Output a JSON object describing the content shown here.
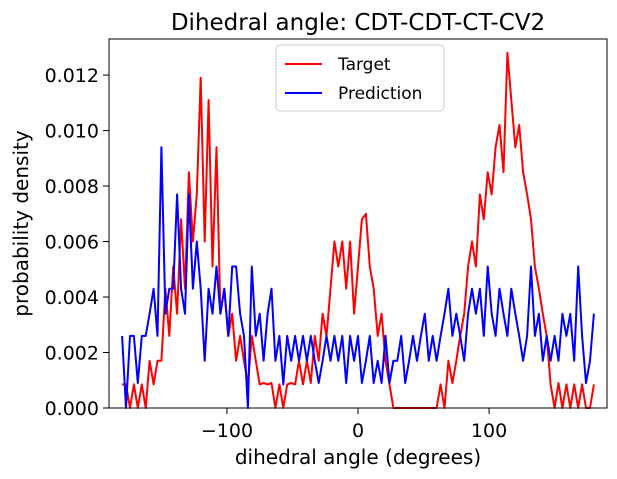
{
  "chart_data": {
    "type": "line",
    "title": "Dihedral angle: CDT-CDT-CT-CV2",
    "xlabel": "dihedral angle (degrees)",
    "ylabel": "probability density",
    "xlim": [
      -190,
      190
    ],
    "ylim": [
      0,
      0.0133
    ],
    "xticks": [
      -100,
      0,
      100
    ],
    "xtick_labels": [
      "−100",
      "0",
      "100"
    ],
    "yticks": [
      0,
      0.002,
      0.004,
      0.006,
      0.008,
      0.01,
      0.012
    ],
    "ytick_labels": [
      "0.000",
      "0.002",
      "0.004",
      "0.006",
      "0.008",
      "0.010",
      "0.012"
    ],
    "grid": false,
    "legend_position": "top-center",
    "series": [
      {
        "name": "Target",
        "color": "#ff0000",
        "points": [
          [
            -180,
            0.00085
          ],
          [
            -177,
            0.00085
          ],
          [
            -174,
            0
          ],
          [
            -171,
            0.00085
          ],
          [
            -168,
            0
          ],
          [
            -165,
            0.00085
          ],
          [
            -162,
            0
          ],
          [
            -159,
            0.0017
          ],
          [
            -156,
            0.00085
          ],
          [
            -153,
            0.0017
          ],
          [
            -150,
            0.0017
          ],
          [
            -147,
            0.0043
          ],
          [
            -144,
            0.0026
          ],
          [
            -141,
            0.0051
          ],
          [
            -138,
            0.0034
          ],
          [
            -135,
            0.0068
          ],
          [
            -132,
            0.0043
          ],
          [
            -129,
            0.0085
          ],
          [
            -126,
            0.006
          ],
          [
            -123,
            0.0077
          ],
          [
            -120,
            0.0119
          ],
          [
            -117,
            0.006
          ],
          [
            -114,
            0.0111
          ],
          [
            -111,
            0.0051
          ],
          [
            -108,
            0.0094
          ],
          [
            -105,
            0.0034
          ],
          [
            -102,
            0.0043
          ],
          [
            -99,
            0.0026
          ],
          [
            -96,
            0.0034
          ],
          [
            -93,
            0.0017
          ],
          [
            -90,
            0.0026
          ],
          [
            -87,
            0.0017
          ],
          [
            -84,
            0.00085
          ],
          [
            -81,
            0.0026
          ],
          [
            -78,
            0.0017
          ],
          [
            -75,
            0.00085
          ],
          [
            -72,
            0.0009
          ],
          [
            -69,
            0.00085
          ],
          [
            -66,
            0.0009
          ],
          [
            -63,
            0
          ],
          [
            -60,
            0.00085
          ],
          [
            -57,
            0
          ],
          [
            -54,
            0.00085
          ],
          [
            -51,
            0.0009
          ],
          [
            -48,
            0.00085
          ],
          [
            -45,
            0.0017
          ],
          [
            -42,
            0.00085
          ],
          [
            -39,
            0.0017
          ],
          [
            -36,
            0.0009
          ],
          [
            -33,
            0.0026
          ],
          [
            -30,
            0.0017
          ],
          [
            -27,
            0.0034
          ],
          [
            -24,
            0.0026
          ],
          [
            -21,
            0.0043
          ],
          [
            -18,
            0.006
          ],
          [
            -15,
            0.0051
          ],
          [
            -12,
            0.006
          ],
          [
            -9,
            0.0043
          ],
          [
            -6,
            0.006
          ],
          [
            -3,
            0.0034
          ],
          [
            0,
            0.0051
          ],
          [
            3,
            0.0068
          ],
          [
            6,
            0.007
          ],
          [
            9,
            0.0051
          ],
          [
            12,
            0.0043
          ],
          [
            15,
            0.0026
          ],
          [
            18,
            0.0034
          ],
          [
            21,
            0.0017
          ],
          [
            24,
            0.00085
          ],
          [
            27,
            0
          ],
          [
            30,
            0
          ],
          [
            33,
            0
          ],
          [
            36,
            0
          ],
          [
            39,
            0
          ],
          [
            42,
            0
          ],
          [
            45,
            0
          ],
          [
            48,
            0
          ],
          [
            51,
            0
          ],
          [
            54,
            0
          ],
          [
            57,
            0
          ],
          [
            60,
            0
          ],
          [
            63,
            0.00085
          ],
          [
            66,
            0
          ],
          [
            69,
            0.0017
          ],
          [
            72,
            0.0009
          ],
          [
            75,
            0.0017
          ],
          [
            78,
            0.0026
          ],
          [
            81,
            0.0034
          ],
          [
            84,
            0.0051
          ],
          [
            87,
            0.006
          ],
          [
            90,
            0.0051
          ],
          [
            93,
            0.0077
          ],
          [
            96,
            0.0068
          ],
          [
            99,
            0.0085
          ],
          [
            102,
            0.0077
          ],
          [
            105,
            0.0094
          ],
          [
            108,
            0.0102
          ],
          [
            111,
            0.0085
          ],
          [
            114,
            0.0128
          ],
          [
            117,
            0.0111
          ],
          [
            120,
            0.0094
          ],
          [
            123,
            0.0102
          ],
          [
            126,
            0.0085
          ],
          [
            129,
            0.0077
          ],
          [
            132,
            0.0068
          ],
          [
            135,
            0.0051
          ],
          [
            138,
            0.0043
          ],
          [
            141,
            0.0034
          ],
          [
            144,
            0.0026
          ],
          [
            147,
            0.00085
          ],
          [
            150,
            0
          ],
          [
            153,
            0.0009
          ],
          [
            156,
            0
          ],
          [
            159,
            0.00085
          ],
          [
            162,
            0
          ],
          [
            165,
            0.00085
          ],
          [
            168,
            0
          ],
          [
            171,
            0.00085
          ],
          [
            174,
            0
          ],
          [
            177,
            0
          ],
          [
            180,
            0.00085
          ]
        ]
      },
      {
        "name": "Prediction",
        "color": "#0000ff",
        "points": [
          [
            -180,
            0.0026
          ],
          [
            -177,
            0
          ],
          [
            -174,
            0.0026
          ],
          [
            -171,
            0.0026
          ],
          [
            -168,
            0.0009
          ],
          [
            -165,
            0.0026
          ],
          [
            -162,
            0.0026
          ],
          [
            -159,
            0.0034
          ],
          [
            -156,
            0.0043
          ],
          [
            -153,
            0.0026
          ],
          [
            -150,
            0.0094
          ],
          [
            -147,
            0.0034
          ],
          [
            -144,
            0.0043
          ],
          [
            -141,
            0.0043
          ],
          [
            -138,
            0.0077
          ],
          [
            -135,
            0.0043
          ],
          [
            -132,
            0.0034
          ],
          [
            -129,
            0.0077
          ],
          [
            -126,
            0.0043
          ],
          [
            -123,
            0.006
          ],
          [
            -120,
            0.0043
          ],
          [
            -117,
            0.0017
          ],
          [
            -114,
            0.0043
          ],
          [
            -111,
            0.0034
          ],
          [
            -108,
            0.0051
          ],
          [
            -105,
            0.0034
          ],
          [
            -102,
            0.0043
          ],
          [
            -99,
            0.0026
          ],
          [
            -96,
            0.0051
          ],
          [
            -93,
            0.0051
          ],
          [
            -90,
            0.0034
          ],
          [
            -87,
            0.0026
          ],
          [
            -84,
            0
          ],
          [
            -81,
            0.0051
          ],
          [
            -78,
            0.0026
          ],
          [
            -75,
            0.0034
          ],
          [
            -72,
            0.0017
          ],
          [
            -69,
            0.0034
          ],
          [
            -66,
            0.0043
          ],
          [
            -63,
            0.0017
          ],
          [
            -60,
            0.0026
          ],
          [
            -57,
            0.00085
          ],
          [
            -54,
            0.0026
          ],
          [
            -51,
            0.0017
          ],
          [
            -48,
            0.0026
          ],
          [
            -45,
            0.0017
          ],
          [
            -42,
            0.0026
          ],
          [
            -39,
            0.0017
          ],
          [
            -36,
            0.0026
          ],
          [
            -33,
            0.0017
          ],
          [
            -30,
            0.0009
          ],
          [
            -27,
            0.0017
          ],
          [
            -24,
            0.0026
          ],
          [
            -21,
            0.0017
          ],
          [
            -18,
            0.0026
          ],
          [
            -15,
            0.0017
          ],
          [
            -12,
            0.0026
          ],
          [
            -9,
            0.0009
          ],
          [
            -6,
            0.0026
          ],
          [
            -3,
            0.0017
          ],
          [
            0,
            0.0026
          ],
          [
            3,
            0.0009
          ],
          [
            6,
            0.0017
          ],
          [
            9,
            0.0026
          ],
          [
            12,
            0.0009
          ],
          [
            15,
            0.0017
          ],
          [
            18,
            0.0009
          ],
          [
            21,
            0.0026
          ],
          [
            24,
            0.0009
          ],
          [
            27,
            0.0017
          ],
          [
            30,
            0.0017
          ],
          [
            33,
            0.0026
          ],
          [
            36,
            0.0009
          ],
          [
            39,
            0.0017
          ],
          [
            42,
            0.0026
          ],
          [
            45,
            0.0017
          ],
          [
            48,
            0.0026
          ],
          [
            51,
            0.0034
          ],
          [
            54,
            0.0017
          ],
          [
            57,
            0.0026
          ],
          [
            60,
            0.0017
          ],
          [
            63,
            0.0026
          ],
          [
            66,
            0.0034
          ],
          [
            69,
            0.0043
          ],
          [
            72,
            0.0026
          ],
          [
            75,
            0.0034
          ],
          [
            78,
            0.0026
          ],
          [
            81,
            0.0017
          ],
          [
            84,
            0.0034
          ],
          [
            87,
            0.0043
          ],
          [
            90,
            0.0034
          ],
          [
            93,
            0.0043
          ],
          [
            96,
            0.0026
          ],
          [
            99,
            0.0051
          ],
          [
            102,
            0.0034
          ],
          [
            105,
            0.0026
          ],
          [
            108,
            0.0043
          ],
          [
            111,
            0.0034
          ],
          [
            114,
            0.0026
          ],
          [
            117,
            0.0043
          ],
          [
            120,
            0.0034
          ],
          [
            123,
            0.0026
          ],
          [
            126,
            0.0017
          ],
          [
            129,
            0.0026
          ],
          [
            132,
            0.0051
          ],
          [
            135,
            0.0026
          ],
          [
            138,
            0.0034
          ],
          [
            141,
            0.0017
          ],
          [
            144,
            0.0026
          ],
          [
            147,
            0.0017
          ],
          [
            150,
            0.0026
          ],
          [
            153,
            0.0017
          ],
          [
            156,
            0.0034
          ],
          [
            159,
            0.0026
          ],
          [
            162,
            0.0034
          ],
          [
            165,
            0.0017
          ],
          [
            168,
            0.0051
          ],
          [
            171,
            0.0026
          ],
          [
            174,
            0.0009
          ],
          [
            177,
            0.0017
          ],
          [
            180,
            0.0034
          ]
        ]
      }
    ]
  }
}
